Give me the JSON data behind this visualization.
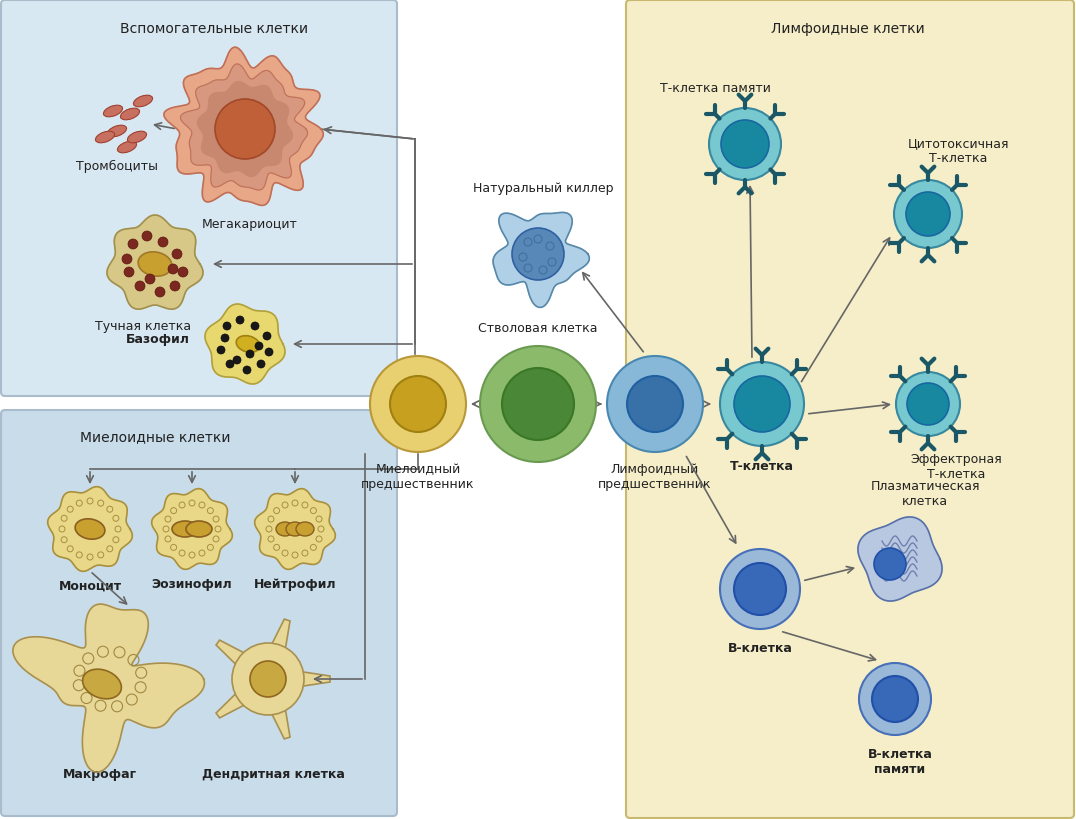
{
  "bg_left_top": "#d8e8f2",
  "bg_left_bottom": "#c8dcea",
  "bg_right": "#f5eec8",
  "title_left_top": "Вспомогательные клетки",
  "title_left_bottom": "Миелоидные клетки",
  "title_right": "Лимфоидные клетки",
  "label_stem": "Стволовая клетка",
  "label_myeloid": "Миелоидный\nпредшественник",
  "label_lymphoid": "Лимфоидный\nпредшественник",
  "label_megakaryocyte": "Мегакариоцит",
  "label_platelets": "Тромбоциты",
  "label_mast": "Тучная клетка",
  "label_basophil": "Базофил",
  "label_nk": "Натуральный киллер",
  "label_monocyte": "Моноцит",
  "label_eosinophil": "Эозинофил",
  "label_neutrophil": "Нейтрофил",
  "label_macrophage": "Макрофаг",
  "label_dendritic": "Дендритная клетка",
  "label_tcell": "Т-клетка",
  "label_tmemory": "Т-клетка памяти",
  "label_cytotoxic": "Цитотоксичная\nТ-клетка",
  "label_effector": "Эффектроная\nТ-клетка",
  "label_bcell": "В-клетка",
  "label_plasma": "Плазматическая\nклетка",
  "label_bmemory": "В-клетка\nпамяти",
  "arrow_color": "#666666",
  "fontsize_label": 9,
  "fontsize_section": 10
}
